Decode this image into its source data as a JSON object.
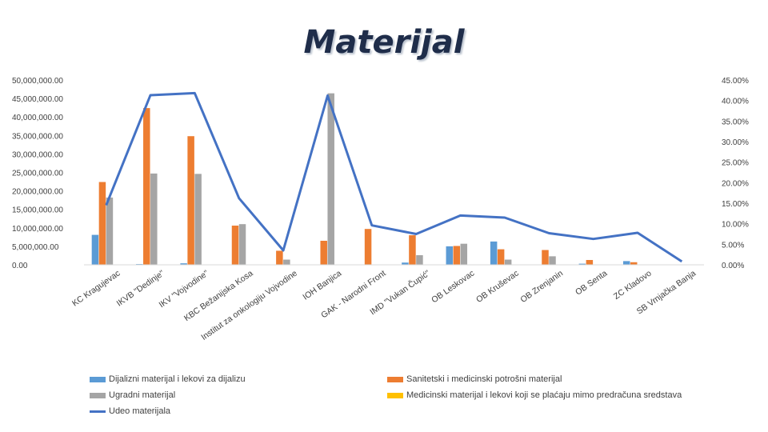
{
  "page": {
    "title": "Materijal"
  },
  "chart_data": {
    "type": "bar",
    "categories": [
      "KC Kragujevac",
      "IKVB \"Dedinje\"",
      "IKV \"Vojvodine\"",
      "KBC Bežanijska Kosa",
      "Institut za onkologiju Vojvodine",
      "IOH Banjica",
      "GAK - Narodni Front",
      "IMD \"Vukan Čupić\"",
      "OB Leskovac",
      "OB Kruševac",
      "OB Zrenjanin",
      "OB Senta",
      "ZC Kladovo",
      "SB Vrnjačka Banja"
    ],
    "series": [
      {
        "name": "Dijalizni materijal i lekovi za dijalizu",
        "color": "#5b9bd5",
        "axis": "left",
        "values": [
          8100000,
          200000,
          400000,
          0,
          0,
          0,
          0,
          600000,
          5000000,
          6300000,
          0,
          300000,
          1000000,
          0
        ]
      },
      {
        "name": "Sanitetski i medicinski potrošni materijal",
        "color": "#ed7d31",
        "axis": "left",
        "values": [
          22400000,
          42400000,
          34800000,
          10600000,
          3800000,
          6500000,
          9700000,
          8000000,
          5100000,
          4200000,
          4000000,
          1300000,
          700000,
          0
        ]
      },
      {
        "name": "Ugradni materijal",
        "color": "#a5a5a5",
        "axis": "left",
        "values": [
          18200000,
          24700000,
          24600000,
          11000000,
          1400000,
          46400000,
          0,
          2600000,
          5700000,
          1400000,
          2300000,
          0,
          0,
          0
        ]
      },
      {
        "name": "Medicinski materijal i lekovi koji se plaćaju mimo predračuna sredstava",
        "color": "#ffc000",
        "axis": "left",
        "values": [
          0,
          0,
          0,
          0,
          0,
          0,
          0,
          0,
          0,
          0,
          0,
          0,
          0,
          0
        ]
      },
      {
        "name": "Udeo materijala",
        "color": "#4472c4",
        "axis": "right",
        "kind": "line",
        "values": [
          14.5,
          41.3,
          41.8,
          16.2,
          3.5,
          41.2,
          9.6,
          7.5,
          12.0,
          11.5,
          7.7,
          6.3,
          7.8,
          0.8
        ]
      }
    ],
    "left_axis": {
      "ylim": [
        0,
        50000000
      ],
      "ticks": [
        "0.00",
        "5,000,000.00",
        "10,000,000.00",
        "15,000,000.00",
        "20,000,000.00",
        "25,000,000.00",
        "30,000,000.00",
        "35,000,000.00",
        "40,000,000.00",
        "45,000,000.00",
        "50,000,000.00"
      ]
    },
    "right_axis": {
      "ylim": [
        0,
        45
      ],
      "ticks": [
        "0.00%",
        "5.00%",
        "10.00%",
        "15.00%",
        "20.00%",
        "25.00%",
        "30.00%",
        "35.00%",
        "40.00%",
        "45.00%"
      ]
    },
    "grid": false,
    "legend_position": "bottom"
  }
}
